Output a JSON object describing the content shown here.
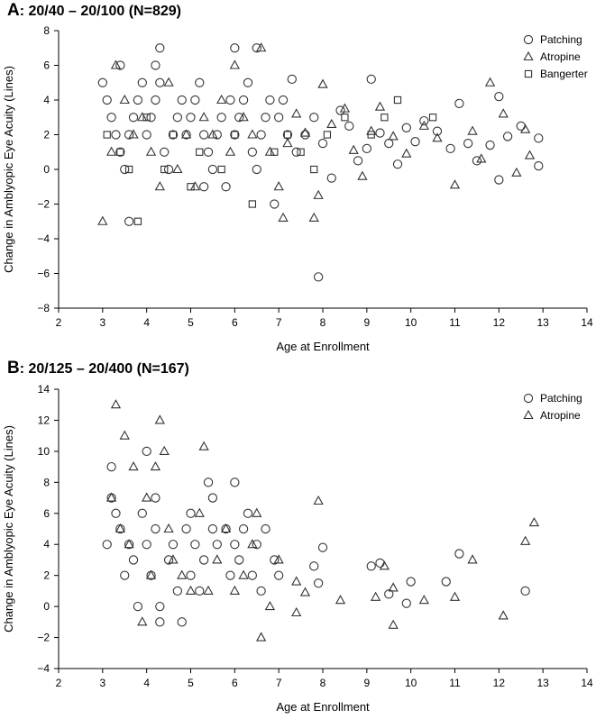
{
  "chart_data": [
    {
      "type": "scatter",
      "panel_letter": "A",
      "title": ": 20/40 – 20/100 (N=829)",
      "xlabel": "Age at Enrollment",
      "ylabel": "Change in Amblyopic Eye Acuity (Lines)",
      "xlim": [
        2,
        14
      ],
      "ylim": [
        -8,
        8
      ],
      "xticks": [
        "2",
        "3",
        "4",
        "5",
        "6",
        "7",
        "8",
        "9",
        "10",
        "11",
        "12",
        "13",
        "14"
      ],
      "yticks": [
        "8",
        "6",
        "4",
        "2",
        "0",
        "−2",
        "−4",
        "−6",
        "−8"
      ],
      "grid": false,
      "legend_position": "top-right",
      "series": [
        {
          "name": "Patching",
          "marker": "circle",
          "points": [
            [
              3.0,
              5
            ],
            [
              3.1,
              4
            ],
            [
              3.2,
              3
            ],
            [
              3.3,
              2
            ],
            [
              3.4,
              1
            ],
            [
              3.5,
              0
            ],
            [
              3.6,
              2
            ],
            [
              3.7,
              3
            ],
            [
              3.8,
              4
            ],
            [
              3.9,
              5
            ],
            [
              3.4,
              6
            ],
            [
              3.6,
              -3
            ],
            [
              4.0,
              2
            ],
            [
              4.1,
              3
            ],
            [
              4.2,
              4
            ],
            [
              4.3,
              5
            ],
            [
              4.4,
              1
            ],
            [
              4.5,
              0
            ],
            [
              4.6,
              2
            ],
            [
              4.7,
              3
            ],
            [
              4.8,
              4
            ],
            [
              4.9,
              2
            ],
            [
              4.3,
              7
            ],
            [
              4.2,
              6
            ],
            [
              5.0,
              3
            ],
            [
              5.1,
              4
            ],
            [
              5.2,
              5
            ],
            [
              5.3,
              2
            ],
            [
              5.4,
              1
            ],
            [
              5.5,
              0
            ],
            [
              5.6,
              2
            ],
            [
              5.7,
              3
            ],
            [
              5.8,
              -1
            ],
            [
              5.9,
              4
            ],
            [
              5.3,
              -1
            ],
            [
              6.0,
              2
            ],
            [
              6.1,
              3
            ],
            [
              6.2,
              4
            ],
            [
              6.3,
              5
            ],
            [
              6.4,
              1
            ],
            [
              6.5,
              0
            ],
            [
              6.6,
              2
            ],
            [
              6.7,
              3
            ],
            [
              6.8,
              4
            ],
            [
              6.9,
              -2
            ],
            [
              6.0,
              7
            ],
            [
              6.5,
              7
            ],
            [
              7.0,
              3
            ],
            [
              7.1,
              4
            ],
            [
              7.2,
              2
            ],
            [
              7.3,
              5.2
            ],
            [
              7.4,
              1
            ],
            [
              7.6,
              2
            ],
            [
              7.8,
              3
            ],
            [
              7.9,
              -6.2
            ],
            [
              8.0,
              1.5
            ],
            [
              8.2,
              -0.5
            ],
            [
              8.4,
              3.4
            ],
            [
              8.6,
              2.5
            ],
            [
              8.8,
              0.5
            ],
            [
              9.0,
              1.2
            ],
            [
              9.1,
              5.2
            ],
            [
              9.3,
              2.1
            ],
            [
              9.5,
              1.5
            ],
            [
              9.7,
              0.3
            ],
            [
              9.9,
              2.4
            ],
            [
              10.1,
              1.6
            ],
            [
              10.3,
              2.8
            ],
            [
              10.6,
              2.2
            ],
            [
              10.9,
              1.2
            ],
            [
              11.1,
              3.8
            ],
            [
              11.3,
              1.5
            ],
            [
              11.5,
              0.5
            ],
            [
              11.8,
              1.4
            ],
            [
              12.0,
              4.2
            ],
            [
              12.0,
              -0.6
            ],
            [
              12.2,
              1.9
            ],
            [
              12.5,
              2.5
            ],
            [
              12.9,
              0.2
            ],
            [
              12.9,
              1.8
            ]
          ]
        },
        {
          "name": "Atropine",
          "marker": "triangle",
          "points": [
            [
              3.0,
              -3
            ],
            [
              3.2,
              1
            ],
            [
              3.3,
              6
            ],
            [
              3.5,
              4
            ],
            [
              3.7,
              2
            ],
            [
              3.9,
              3
            ],
            [
              4.1,
              1
            ],
            [
              4.3,
              -1
            ],
            [
              4.5,
              5
            ],
            [
              4.7,
              0
            ],
            [
              4.9,
              2
            ],
            [
              5.1,
              -1
            ],
            [
              5.3,
              3
            ],
            [
              5.5,
              2
            ],
            [
              5.7,
              4
            ],
            [
              5.9,
              1
            ],
            [
              6.0,
              6
            ],
            [
              6.2,
              3
            ],
            [
              6.4,
              2
            ],
            [
              6.6,
              7
            ],
            [
              6.8,
              1
            ],
            [
              7.0,
              -1
            ],
            [
              7.1,
              -2.8
            ],
            [
              7.2,
              1.5
            ],
            [
              7.4,
              3.2
            ],
            [
              7.6,
              2.1
            ],
            [
              7.8,
              -2.8
            ],
            [
              7.9,
              -1.5
            ],
            [
              8.0,
              4.9
            ],
            [
              8.2,
              2.6
            ],
            [
              8.5,
              3.5
            ],
            [
              8.7,
              1.1
            ],
            [
              8.9,
              -0.4
            ],
            [
              9.1,
              2.2
            ],
            [
              9.3,
              3.6
            ],
            [
              9.6,
              1.9
            ],
            [
              9.9,
              0.9
            ],
            [
              10.3,
              2.5
            ],
            [
              10.6,
              1.8
            ],
            [
              11.0,
              -0.9
            ],
            [
              11.4,
              2.2
            ],
            [
              11.6,
              0.6
            ],
            [
              11.8,
              5.0
            ],
            [
              12.1,
              3.2
            ],
            [
              12.4,
              -0.2
            ],
            [
              12.6,
              2.3
            ],
            [
              12.7,
              0.8
            ]
          ]
        },
        {
          "name": "Bangerter",
          "marker": "square",
          "points": [
            [
              3.1,
              2
            ],
            [
              3.4,
              1
            ],
            [
              3.6,
              0
            ],
            [
              3.8,
              -3
            ],
            [
              4.0,
              3
            ],
            [
              4.4,
              0
            ],
            [
              4.6,
              2
            ],
            [
              5.0,
              -1
            ],
            [
              5.2,
              1
            ],
            [
              5.7,
              0
            ],
            [
              6.0,
              2
            ],
            [
              6.4,
              -2
            ],
            [
              6.9,
              1
            ],
            [
              7.2,
              2
            ],
            [
              7.5,
              1
            ],
            [
              7.8,
              0
            ],
            [
              8.1,
              2
            ],
            [
              8.5,
              3
            ],
            [
              9.1,
              2
            ],
            [
              9.4,
              3
            ],
            [
              9.7,
              4
            ],
            [
              10.5,
              3
            ]
          ]
        }
      ]
    },
    {
      "type": "scatter",
      "panel_letter": "B",
      "title": ": 20/125 – 20/400 (N=167)",
      "xlabel": "Age at Enrollment",
      "ylabel": "Change in Amblyopic Eye Acuity (Lines)",
      "xlim": [
        2,
        14
      ],
      "ylim": [
        -4,
        14
      ],
      "xticks": [
        "2",
        "3",
        "4",
        "5",
        "6",
        "7",
        "8",
        "9",
        "10",
        "11",
        "12",
        "13",
        "14"
      ],
      "yticks": [
        "14",
        "12",
        "10",
        "8",
        "6",
        "4",
        "2",
        "0",
        "−2",
        "−4"
      ],
      "grid": false,
      "legend_position": "top-right",
      "series": [
        {
          "name": "Patching",
          "marker": "circle",
          "points": [
            [
              3.1,
              4
            ],
            [
              3.2,
              7
            ],
            [
              3.2,
              9
            ],
            [
              3.3,
              6
            ],
            [
              3.4,
              5
            ],
            [
              3.5,
              2
            ],
            [
              3.6,
              4
            ],
            [
              3.7,
              3
            ],
            [
              3.8,
              0
            ],
            [
              3.9,
              6
            ],
            [
              4.0,
              10
            ],
            [
              4.0,
              4
            ],
            [
              4.1,
              2
            ],
            [
              4.2,
              5
            ],
            [
              4.2,
              7
            ],
            [
              4.3,
              0
            ],
            [
              4.3,
              -1
            ],
            [
              4.5,
              3
            ],
            [
              4.6,
              4
            ],
            [
              4.7,
              1
            ],
            [
              4.8,
              -1
            ],
            [
              4.9,
              5
            ],
            [
              5.0,
              6
            ],
            [
              5.0,
              2
            ],
            [
              5.1,
              4
            ],
            [
              5.2,
              1
            ],
            [
              5.3,
              3
            ],
            [
              5.4,
              8
            ],
            [
              5.5,
              5
            ],
            [
              5.5,
              7
            ],
            [
              5.6,
              4
            ],
            [
              5.8,
              5
            ],
            [
              5.9,
              2
            ],
            [
              6.0,
              8
            ],
            [
              6.0,
              4
            ],
            [
              6.1,
              3
            ],
            [
              6.2,
              5
            ],
            [
              6.3,
              6
            ],
            [
              6.4,
              2
            ],
            [
              6.5,
              4
            ],
            [
              6.6,
              1
            ],
            [
              6.7,
              5
            ],
            [
              6.9,
              3
            ],
            [
              7.0,
              2
            ],
            [
              7.8,
              2.6
            ],
            [
              7.9,
              1.5
            ],
            [
              8.0,
              3.8
            ],
            [
              9.1,
              2.6
            ],
            [
              9.3,
              2.8
            ],
            [
              9.5,
              0.8
            ],
            [
              9.9,
              0.2
            ],
            [
              10.0,
              1.6
            ],
            [
              10.8,
              1.6
            ],
            [
              11.1,
              3.4
            ],
            [
              12.6,
              1.0
            ]
          ]
        },
        {
          "name": "Atropine",
          "marker": "triangle",
          "points": [
            [
              3.2,
              7
            ],
            [
              3.3,
              13
            ],
            [
              3.4,
              5
            ],
            [
              3.5,
              11
            ],
            [
              3.6,
              4
            ],
            [
              3.7,
              9
            ],
            [
              3.9,
              -1
            ],
            [
              4.0,
              7
            ],
            [
              4.1,
              2
            ],
            [
              4.2,
              9
            ],
            [
              4.3,
              12
            ],
            [
              4.4,
              10
            ],
            [
              4.5,
              5
            ],
            [
              4.6,
              3
            ],
            [
              4.8,
              2
            ],
            [
              5.0,
              1
            ],
            [
              5.2,
              6
            ],
            [
              5.3,
              10.3
            ],
            [
              5.4,
              1
            ],
            [
              5.6,
              3
            ],
            [
              5.8,
              5
            ],
            [
              6.0,
              1
            ],
            [
              6.2,
              2
            ],
            [
              6.4,
              4
            ],
            [
              6.5,
              6
            ],
            [
              6.6,
              -2
            ],
            [
              6.8,
              0
            ],
            [
              7.0,
              3
            ],
            [
              7.4,
              1.6
            ],
            [
              7.4,
              -0.4
            ],
            [
              7.6,
              0.9
            ],
            [
              7.9,
              6.8
            ],
            [
              8.4,
              0.4
            ],
            [
              9.2,
              0.6
            ],
            [
              9.4,
              2.6
            ],
            [
              9.6,
              -1.2
            ],
            [
              9.6,
              1.2
            ],
            [
              10.3,
              0.4
            ],
            [
              11.0,
              0.6
            ],
            [
              11.4,
              3.0
            ],
            [
              12.1,
              -0.6
            ],
            [
              12.6,
              4.2
            ],
            [
              12.8,
              5.4
            ]
          ]
        }
      ]
    }
  ]
}
